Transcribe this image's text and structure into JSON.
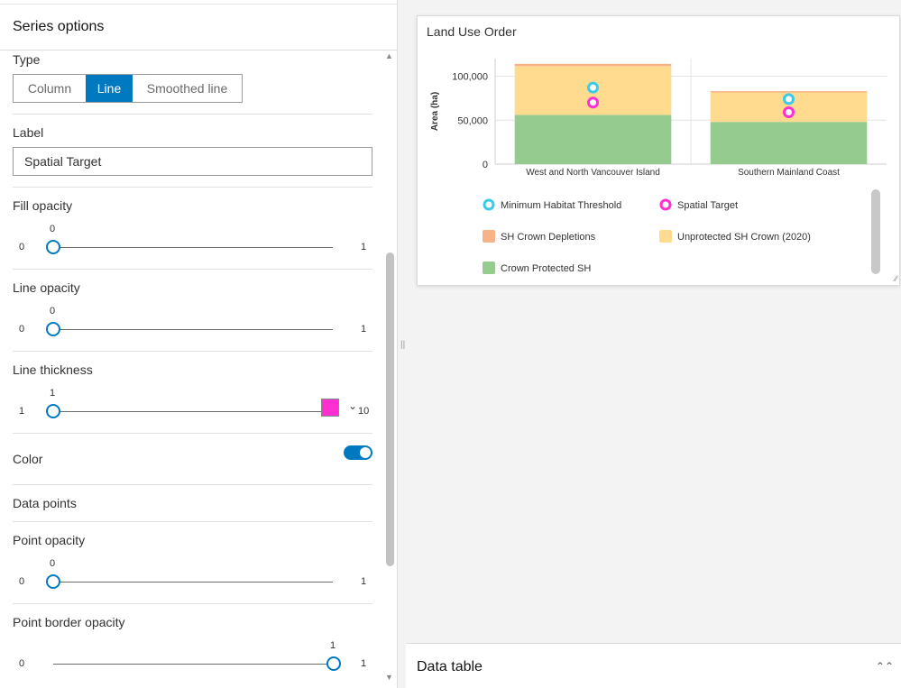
{
  "panel": {
    "title": "Series options",
    "type_label": "Type",
    "type_options": [
      "Column",
      "Line",
      "Smoothed line"
    ],
    "type_selected": "Line",
    "label_label": "Label",
    "label_value": "Spatial Target",
    "fill_opacity": {
      "label": "Fill opacity",
      "min": "0",
      "max": "1",
      "value": "0",
      "fraction": 0
    },
    "line_opacity": {
      "label": "Line opacity",
      "min": "0",
      "max": "1",
      "value": "0",
      "fraction": 0
    },
    "line_thickness": {
      "label": "Line thickness",
      "min": "1",
      "max": "10",
      "value": "1",
      "fraction": 0
    },
    "color": {
      "label": "Color",
      "value": "#ff2fd0"
    },
    "data_points": {
      "label": "Data points",
      "enabled": true
    },
    "point_opacity": {
      "label": "Point opacity",
      "min": "0",
      "max": "1",
      "value": "0",
      "fraction": 0
    },
    "point_border_opacity": {
      "label": "Point border opacity",
      "min": "0",
      "max": "1",
      "value": "1",
      "fraction": 1
    }
  },
  "chart": {
    "title": "Land Use Order"
  },
  "chart_data": {
    "type": "bar",
    "stacked": true,
    "title": "Land Use Order",
    "xlabel": "",
    "ylabel": "Area (ha)",
    "ylim": [
      0,
      120000
    ],
    "ytick_values": [
      0,
      50000,
      100000
    ],
    "ytick_labels": [
      "0",
      "50,000",
      "100,000"
    ],
    "categories": [
      "West and North Vancouver Island",
      "Southern Mainland Coast"
    ],
    "series": [
      {
        "name": "Crown Protected SH",
        "kind": "bar",
        "color": "#96cb8f",
        "values": [
          56000,
          48000
        ]
      },
      {
        "name": "Unprotected SH Crown (2020)",
        "kind": "bar",
        "color": "#ffdb90",
        "values": [
          55500,
          33500
        ]
      },
      {
        "name": "SH Crown Depletions",
        "kind": "bar",
        "color": "#f7b288",
        "values": [
          2500,
          1500
        ]
      },
      {
        "name": "Minimum Habitat Threshold",
        "kind": "point",
        "color": "#3bcbe8",
        "values": [
          87000,
          74000
        ]
      },
      {
        "name": "Spatial Target",
        "kind": "point",
        "color": "#ff2fd0",
        "values": [
          70000,
          59000
        ]
      }
    ],
    "legend_order": [
      "Minimum Habitat Threshold",
      "Spatial Target",
      "SH Crown Depletions",
      "Unprotected SH Crown (2020)",
      "Crown Protected SH"
    ],
    "legend_position": "bottom",
    "grid": true
  },
  "data_table": {
    "title": "Data table"
  },
  "icons": {
    "chevron_down": "chevron-down-icon",
    "collapse": "double-chevron-up-icon",
    "scroll_up": "scroll-up-icon",
    "scroll_down": "scroll-down-icon",
    "splitter": "splitter-handle-icon",
    "resize": "resize-grip-icon"
  }
}
